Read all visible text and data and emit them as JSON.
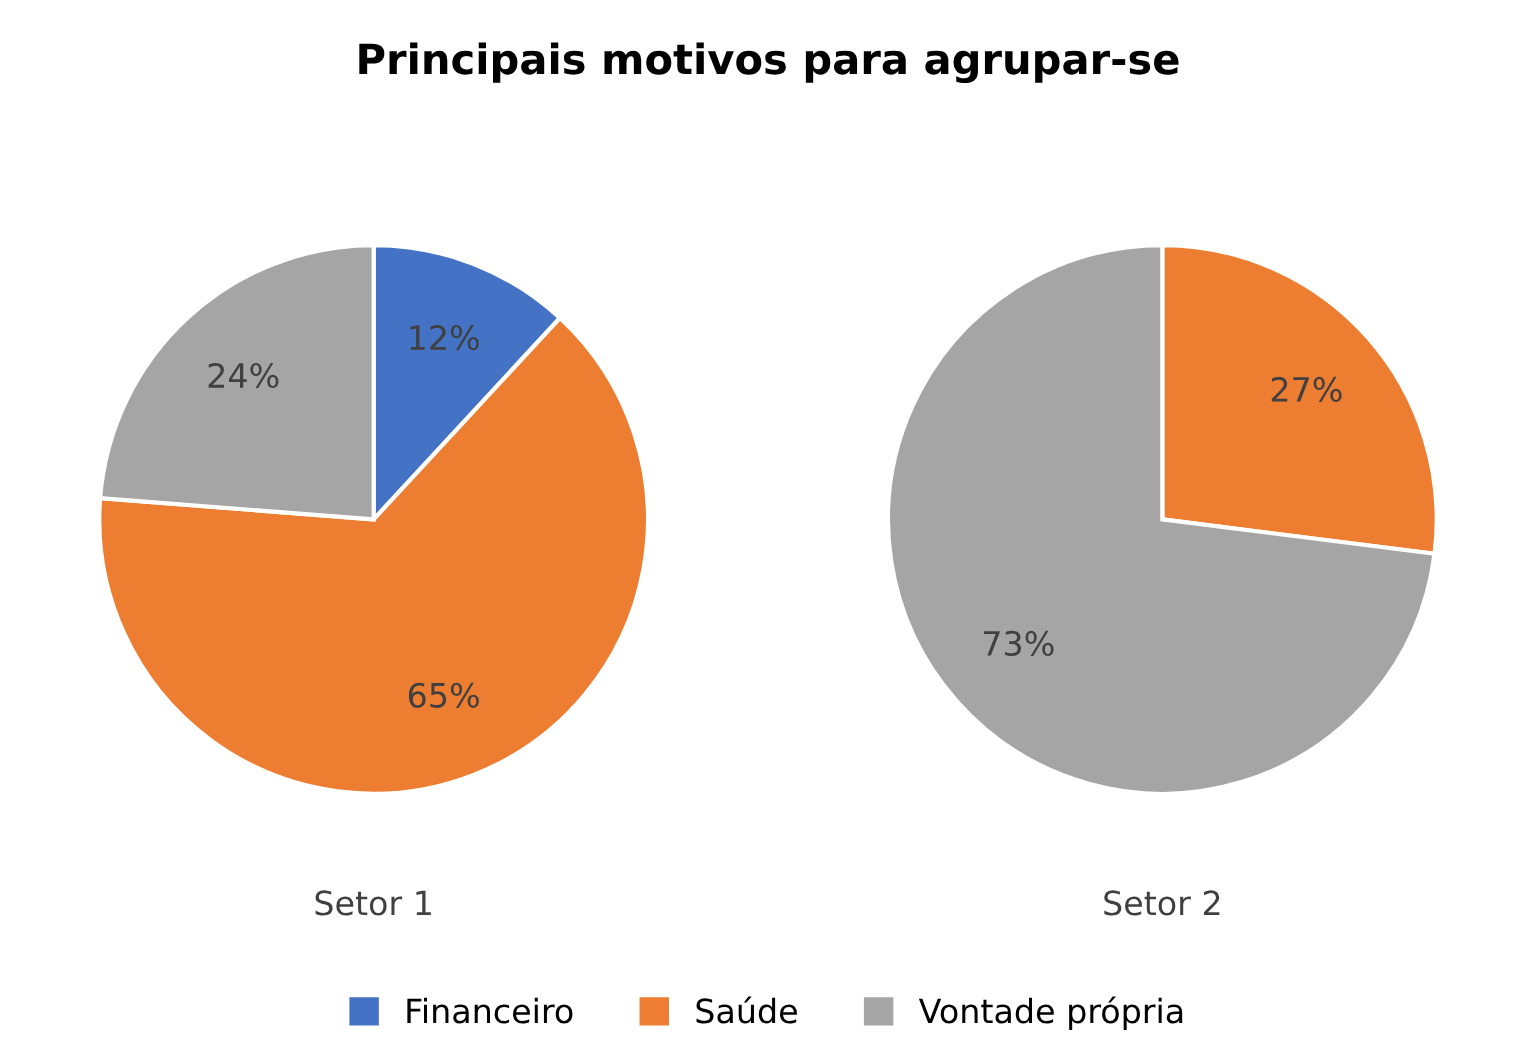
{
  "chart_data": [
    {
      "type": "pie",
      "title": "Principais motivos para agrupar-se",
      "xlabel": "Setor 1",
      "categories": [
        "Financeiro",
        "Saúde",
        "Vontade própria"
      ],
      "values": [
        12,
        65,
        24
      ],
      "colors": [
        "#4472c4",
        "#ed7d31",
        "#a5a5a5"
      ],
      "value_labels": [
        "12%",
        "65%",
        "24%"
      ],
      "legend": "bottom"
    },
    {
      "type": "pie",
      "xlabel": "Setor 2",
      "values": [
        0,
        27,
        73
      ],
      "colors": [
        "#4472c4",
        "#ed7d31",
        "#a5a5a5"
      ],
      "value_labels": [
        null,
        "27%",
        "73%"
      ]
    }
  ]
}
